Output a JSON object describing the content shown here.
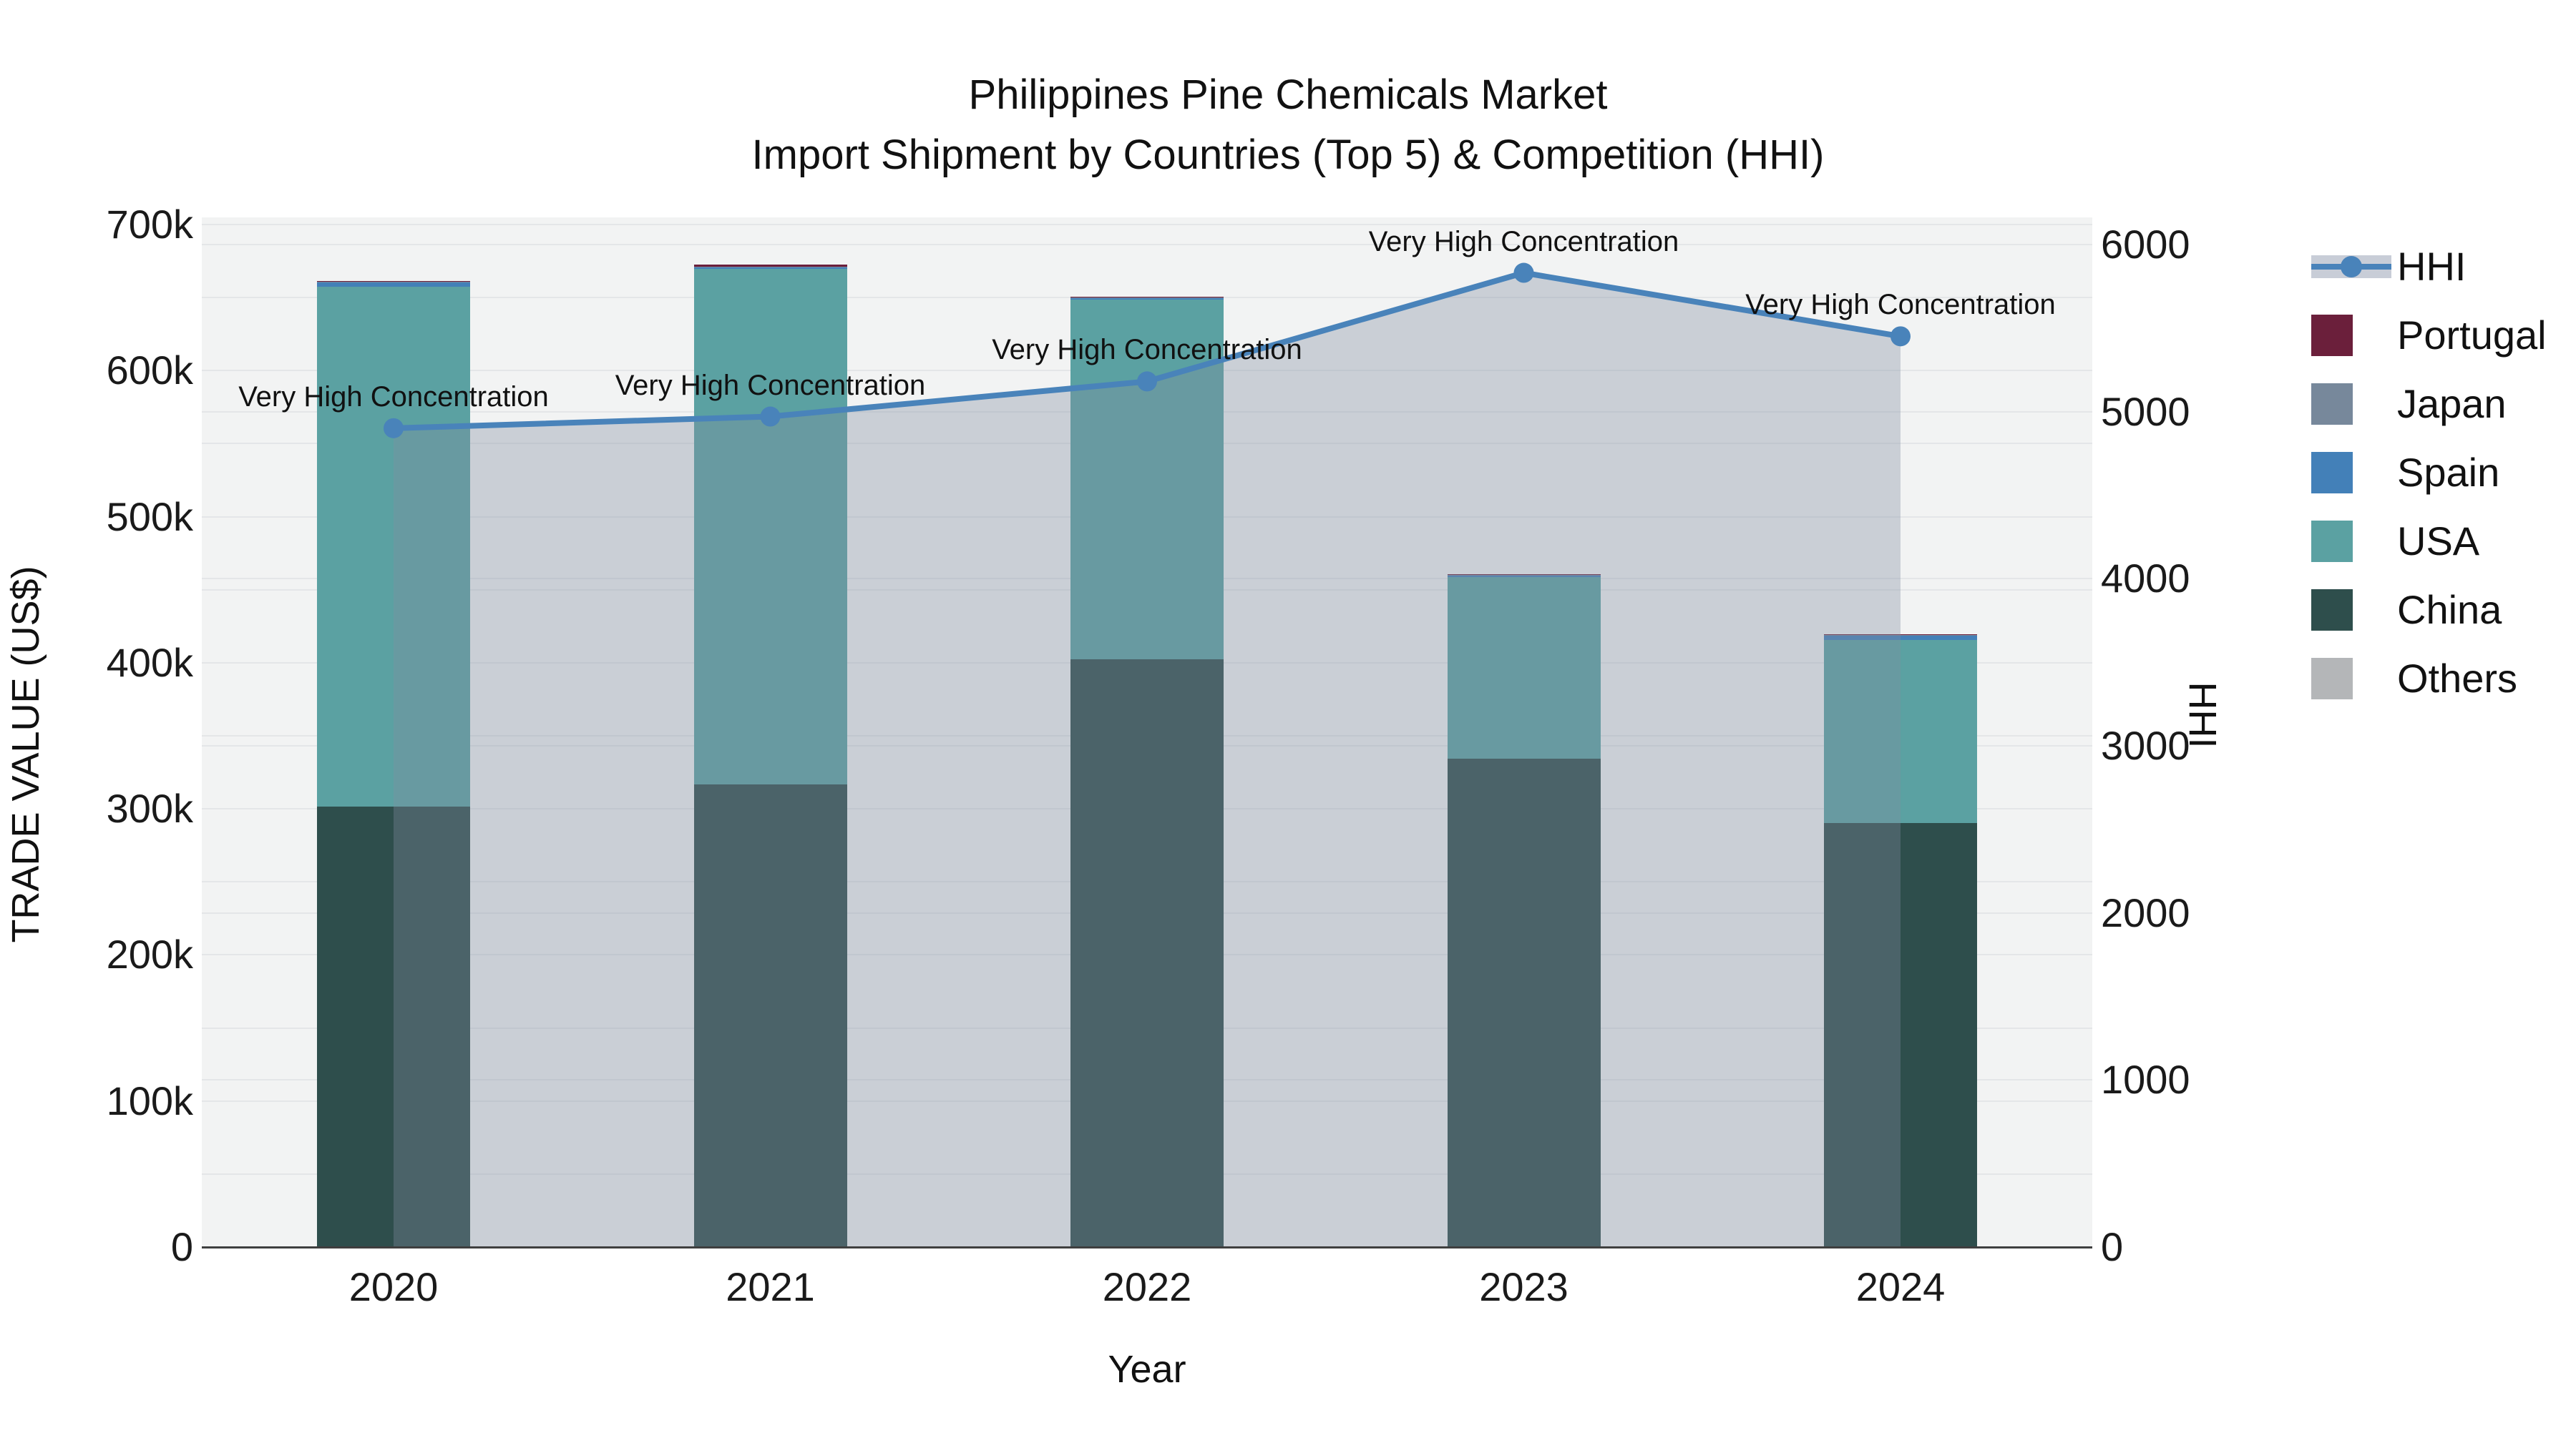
{
  "title": "Philippines Pine Chemicals Market",
  "subtitle": "Import Shipment by Countries (Top 5) & Competition (HHI)",
  "colors": {
    "plot_background": "#f2f3f3",
    "gridline": "#e4e6e8",
    "axis_line": "#3f3f3f",
    "hhi_line": "#4983ba",
    "hhi_area_fill": "rgba(128,139,161,0.35)",
    "hhi_legend_band": "#c8cdd7",
    "portugal": "#6b1f3b",
    "japan": "#77889b",
    "spain": "#4380b8",
    "usa": "#5ba1a2",
    "china": "#2e4e4c",
    "others": "#b4b6b8"
  },
  "legend": {
    "items": [
      {
        "label": "HHI",
        "type": "line"
      },
      {
        "label": "Portugal",
        "type": "swatch",
        "color": "#6b1f3b"
      },
      {
        "label": "Japan",
        "type": "swatch",
        "color": "#77889b"
      },
      {
        "label": "Spain",
        "type": "swatch",
        "color": "#4380b8"
      },
      {
        "label": "USA",
        "type": "swatch",
        "color": "#5ba1a2"
      },
      {
        "label": "China",
        "type": "swatch",
        "color": "#2e4e4c"
      },
      {
        "label": "Others",
        "type": "swatch",
        "color": "#b4b6b8"
      }
    ]
  },
  "chart_data": {
    "type": "bar",
    "subtype": "stacked bars (left axis, US$ thousands) + HHI line with filled area (right axis)",
    "title": "Philippines Pine Chemicals Market",
    "subtitle": "Import Shipment by Countries (Top 5) & Competition (HHI)",
    "categories": [
      "2020",
      "2021",
      "2022",
      "2023",
      "2024"
    ],
    "bar_unit": "US$ thousands",
    "stack_order_bottom_to_top": [
      "Others",
      "China",
      "USA",
      "Spain",
      "Japan",
      "Portugal"
    ],
    "series": [
      {
        "name": "Others",
        "color": "#b4b6b8",
        "values_k": [
          0.5,
          0.5,
          0.5,
          0.5,
          0.5
        ]
      },
      {
        "name": "China",
        "color": "#2e4e4c",
        "values_k": [
          301,
          316,
          402,
          334,
          290
        ]
      },
      {
        "name": "USA",
        "color": "#5ba1a2",
        "values_k": [
          356,
          353,
          246,
          124,
          125
        ]
      },
      {
        "name": "Spain",
        "color": "#4380b8",
        "values_k": [
          3,
          1,
          1,
          1,
          3
        ]
      },
      {
        "name": "Japan",
        "color": "#77889b",
        "values_k": [
          0.5,
          0.5,
          0.5,
          0.5,
          0.5
        ]
      },
      {
        "name": "Portugal",
        "color": "#6b1f3b",
        "values_k": [
          0.5,
          1.5,
          0.5,
          0.5,
          0.5
        ]
      }
    ],
    "bar_totals_k": [
      661,
      672,
      650,
      460,
      419
    ],
    "line_series": {
      "name": "HHI",
      "values": [
        4900,
        4970,
        5180,
        5830,
        5450
      ],
      "color": "#4983ba",
      "area_fill": "rgba(128,139,161,0.35)"
    },
    "annotations": [
      {
        "x_index": 0,
        "text": "Very High Concentration"
      },
      {
        "x_index": 1,
        "text": "Very High Concentration"
      },
      {
        "x_index": 2,
        "text": "Very High Concentration"
      },
      {
        "x_index": 3,
        "text": "Very High Concentration"
      },
      {
        "x_index": 4,
        "text": "Very High Concentration"
      }
    ],
    "xlabel": "Year",
    "ylabel_left": "TRADE VALUE (US$)",
    "ylabel_right": "HHI",
    "y_left_ticks": [
      {
        "v": 0,
        "label": "0"
      },
      {
        "v": 100,
        "label": "100k"
      },
      {
        "v": 200,
        "label": "200k"
      },
      {
        "v": 300,
        "label": "300k"
      },
      {
        "v": 400,
        "label": "400k"
      },
      {
        "v": 500,
        "label": "500k"
      },
      {
        "v": 600,
        "label": "600k"
      },
      {
        "v": 700,
        "label": "700k"
      }
    ],
    "y_right_ticks": [
      {
        "v": 0,
        "label": "0"
      },
      {
        "v": 1000,
        "label": "1000"
      },
      {
        "v": 2000,
        "label": "2000"
      },
      {
        "v": 3000,
        "label": "3000"
      },
      {
        "v": 4000,
        "label": "4000"
      },
      {
        "v": 5000,
        "label": "5000"
      },
      {
        "v": 6000,
        "label": "6000"
      }
    ],
    "y_left_range_k": [
      0,
      700
    ],
    "y_right_range": [
      0,
      6000
    ],
    "grid": true,
    "legend_position": "right"
  }
}
